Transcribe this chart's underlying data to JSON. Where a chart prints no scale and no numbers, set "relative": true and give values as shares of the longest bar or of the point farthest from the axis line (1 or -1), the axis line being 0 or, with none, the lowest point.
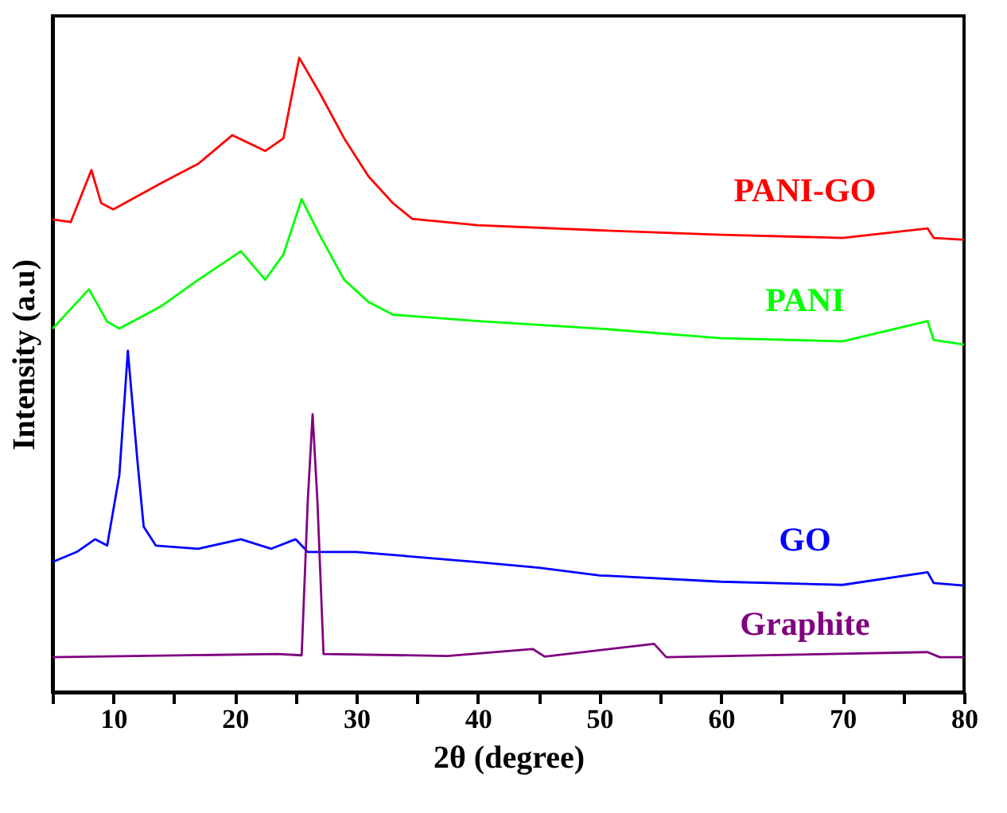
{
  "chart_data": {
    "type": "line",
    "relative": true,
    "xlabel": "2θ (degree)",
    "ylabel": "Intensity (a.u)",
    "xlim": [
      5,
      80
    ],
    "xticks": [
      {
        "value": 5,
        "label": null
      },
      10,
      {
        "value": 15,
        "label": null
      },
      20,
      {
        "value": 25,
        "label": null
      },
      30,
      {
        "value": 35,
        "label": null
      },
      40,
      {
        "value": 45,
        "label": null
      },
      50,
      {
        "value": 55,
        "label": null
      },
      60,
      {
        "value": 65,
        "label": null
      },
      70,
      {
        "value": 75,
        "label": null
      },
      80
    ],
    "grid": false,
    "legend": false,
    "marker": "none",
    "line_style": "solid",
    "series": [
      {
        "name": "PANI-GO",
        "color": "#ff0000",
        "x": [
          5,
          6.5,
          8.2,
          9,
          10,
          14,
          17,
          19.8,
          22.5,
          24,
          25.3,
          27,
          29,
          31,
          33,
          34.6,
          40,
          50,
          60,
          70,
          77,
          77.5,
          80
        ],
        "values": [
          0.745,
          0.741,
          0.823,
          0.771,
          0.761,
          0.803,
          0.833,
          0.878,
          0.853,
          0.873,
          1,
          0.944,
          0.873,
          0.813,
          0.771,
          0.746,
          0.736,
          0.728,
          0.721,
          0.716,
          0.731,
          0.716,
          0.713
        ]
      },
      {
        "name": "PANI",
        "color": "#00ff00",
        "x": [
          5,
          8,
          9.5,
          10.5,
          14,
          17,
          20.5,
          22.5,
          24,
          25.5,
          27,
          29,
          31,
          33,
          40,
          50,
          60,
          70,
          77,
          77.5,
          80
        ],
        "values": [
          0.573,
          0.635,
          0.584,
          0.573,
          0.609,
          0.65,
          0.695,
          0.65,
          0.69,
          0.777,
          0.72,
          0.65,
          0.615,
          0.595,
          0.585,
          0.573,
          0.558,
          0.553,
          0.585,
          0.555,
          0.548
        ]
      },
      {
        "name": "GO",
        "color": "#0000ff",
        "x": [
          5,
          7,
          8.5,
          9.5,
          10.5,
          11.2,
          12,
          12.5,
          13.5,
          17,
          20.5,
          23,
          25,
          26,
          30,
          40,
          45,
          50,
          60,
          70,
          77,
          77.5,
          80
        ],
        "values": [
          0.205,
          0.221,
          0.241,
          0.231,
          0.342,
          0.538,
          0.362,
          0.261,
          0.231,
          0.226,
          0.241,
          0.226,
          0.241,
          0.221,
          0.221,
          0.205,
          0.196,
          0.184,
          0.174,
          0.169,
          0.189,
          0.172,
          0.168
        ]
      },
      {
        "name": "Graphite",
        "color": "#800080",
        "x": [
          5,
          23.5,
          25.5,
          26,
          26.4,
          26.8,
          27.3,
          37.5,
          44.5,
          45.5,
          54.5,
          55.5,
          77,
          78,
          80
        ],
        "values": [
          0.055,
          0.06,
          0.058,
          0.3,
          0.438,
          0.3,
          0.06,
          0.057,
          0.068,
          0.056,
          0.076,
          0.055,
          0.063,
          0.055,
          0.055
        ]
      }
    ]
  }
}
